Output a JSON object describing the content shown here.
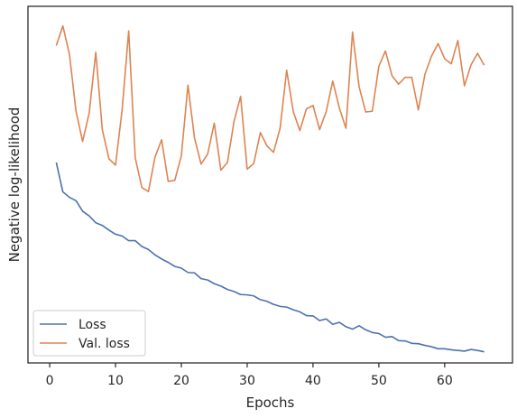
{
  "chart_data": {
    "type": "line",
    "xlabel": "Epochs",
    "ylabel": "Negative log-likelihood",
    "xlim": [
      -3.3,
      70.3
    ],
    "ylim": [
      0.0,
      1.0
    ],
    "y_ticks_shown": false,
    "x_ticks": [
      0,
      10,
      20,
      30,
      40,
      50,
      60
    ],
    "grid": false,
    "legend_position": "bottom-left",
    "series": [
      {
        "name": "Loss",
        "color": "#4c72b0",
        "x": [
          1,
          2,
          3,
          4,
          5,
          6,
          7,
          8,
          9,
          10,
          11,
          12,
          13,
          14,
          15,
          16,
          17,
          18,
          19,
          20,
          21,
          22,
          23,
          24,
          25,
          26,
          27,
          28,
          29,
          30,
          31,
          32,
          33,
          34,
          35,
          36,
          37,
          38,
          39,
          40,
          41,
          42,
          43,
          44,
          45,
          46,
          47,
          48,
          49,
          50,
          51,
          52,
          53,
          54,
          55,
          56,
          57,
          58,
          59,
          60,
          61,
          62,
          63,
          64,
          65,
          66
        ],
        "values": [
          0.555,
          0.468,
          0.452,
          0.442,
          0.411,
          0.397,
          0.377,
          0.369,
          0.355,
          0.343,
          0.338,
          0.324,
          0.324,
          0.307,
          0.298,
          0.282,
          0.27,
          0.26,
          0.248,
          0.243,
          0.23,
          0.229,
          0.212,
          0.208,
          0.197,
          0.19,
          0.18,
          0.174,
          0.165,
          0.164,
          0.161,
          0.15,
          0.145,
          0.136,
          0.13,
          0.128,
          0.12,
          0.114,
          0.103,
          0.102,
          0.088,
          0.093,
          0.077,
          0.083,
          0.07,
          0.063,
          0.073,
          0.061,
          0.053,
          0.05,
          0.039,
          0.041,
          0.029,
          0.028,
          0.021,
          0.02,
          0.015,
          0.011,
          0.005,
          0.005,
          0.002,
          0.0,
          -0.002,
          0.003,
          0.0,
          -0.004
        ]
      },
      {
        "name": "Val. loss",
        "color": "#dd8452",
        "x": [
          1,
          2,
          3,
          4,
          5,
          6,
          7,
          8,
          9,
          10,
          11,
          12,
          13,
          14,
          15,
          16,
          17,
          18,
          19,
          20,
          21,
          22,
          23,
          24,
          25,
          26,
          27,
          28,
          29,
          30,
          31,
          32,
          33,
          34,
          35,
          36,
          37,
          38,
          39,
          40,
          41,
          42,
          43,
          44,
          45,
          46,
          47,
          48,
          49,
          50,
          51,
          52,
          53,
          54,
          55,
          56,
          57,
          58,
          59,
          60,
          61,
          62,
          63,
          64,
          65,
          66
        ],
        "values": [
          0.9,
          0.958,
          0.874,
          0.706,
          0.617,
          0.701,
          0.88,
          0.651,
          0.566,
          0.547,
          0.71,
          0.943,
          0.568,
          0.481,
          0.469,
          0.571,
          0.622,
          0.499,
          0.502,
          0.575,
          0.783,
          0.627,
          0.55,
          0.58,
          0.671,
          0.532,
          0.555,
          0.676,
          0.75,
          0.535,
          0.552,
          0.643,
          0.604,
          0.585,
          0.656,
          0.827,
          0.705,
          0.649,
          0.713,
          0.723,
          0.652,
          0.705,
          0.795,
          0.716,
          0.656,
          0.94,
          0.778,
          0.704,
          0.706,
          0.839,
          0.884,
          0.811,
          0.786,
          0.806,
          0.806,
          0.71,
          0.815,
          0.869,
          0.906,
          0.861,
          0.846,
          0.915,
          0.781,
          0.843,
          0.877,
          0.842
        ]
      }
    ]
  }
}
